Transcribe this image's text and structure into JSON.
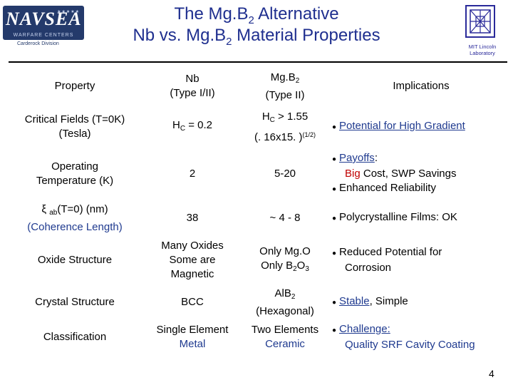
{
  "header": {
    "left_logo_text": "NAVSEA",
    "left_logo_subtitle": "WARFARE CENTERS",
    "left_logo_division": "Carderock Division",
    "title_line1_a": "The  Mg.B",
    "title_line1_sub": "2",
    "title_line1_b": "  Alternative",
    "title_line2_a": "Nb vs. Mg.B",
    "title_line2_sub": "2",
    "title_line2_b": "  Material Properties",
    "right_logo_caption": "MIT Lincoln Laboratory"
  },
  "table": {
    "headers": {
      "property": "Property",
      "nb_line1": "Nb",
      "nb_line2": "(Type  I/II)",
      "mg_a": "Mg.B",
      "mg_sub": "2",
      "mg_line2": "(Type II)",
      "implications": "Implications"
    },
    "rows": {
      "critical_fields": {
        "property_line1": "Critical Fields (T=0K)",
        "property_line2": "(Tesla)",
        "nb_a": "H",
        "nb_sub": "C",
        "nb_b": " = 0.2",
        "mg_a": "H",
        "mg_sub": "C",
        "mg_b": " > 1.55",
        "mg_line2": "(. 16x15. )",
        "mg_sup": "(1/2)",
        "impl": "Potential for High Gradient"
      },
      "operating_temperature": {
        "property_line1": "Operating",
        "property_line2": "Temperature (K)",
        "nb": "2",
        "mg": "5-20",
        "impl_line1": "Payoffs",
        "impl_line1_suffix": ":",
        "impl_line2_a": "Big",
        "impl_line2_b": "  Cost,  SWP  Savings",
        "impl_line3": "Enhanced  Reliability"
      },
      "coherence_length": {
        "property_line1_a": "ξ ",
        "property_line1_sub": "ab",
        "property_line1_b": "(T=0) (nm)",
        "property_line2": "(Coherence  Length)",
        "nb": "38",
        "mg": "~ 4 - 8",
        "impl": "Polycrystalline Films: OK"
      },
      "oxide_structure": {
        "property": "Oxide  Structure",
        "nb_line1": "Many  Oxides",
        "nb_line2": "Some are",
        "nb_line3": "Magnetic",
        "mg_line1": "Only  Mg.O",
        "mg_line2_a": "Only  B",
        "mg_line2_sub1": "2",
        "mg_line2_b": "O",
        "mg_line2_sub2": "3",
        "impl_line1": "Reduced Potential for",
        "impl_line2": "Corrosion"
      },
      "crystal_structure": {
        "property": "Crystal  Structure",
        "nb": "BCC",
        "mg_a": "AlB",
        "mg_sub": "2",
        "mg_line2": "(Hexagonal)",
        "impl_a": "Stable",
        "impl_b": ",  Simple"
      },
      "classification": {
        "property": "Classification",
        "nb_line1": "Single Element",
        "nb_line2": "Metal",
        "mg_line1": "Two Elements",
        "mg_line2": "Ceramic",
        "impl_line1": "Challenge:",
        "impl_line2": "Quality SRF Cavity Coating"
      }
    }
  },
  "page_number": "4",
  "colors": {
    "title": "#1f2f8f",
    "highlight_red": "#c00000",
    "highlight_blue": "#1f3a8f",
    "navsea_bg": "#243a6b"
  }
}
